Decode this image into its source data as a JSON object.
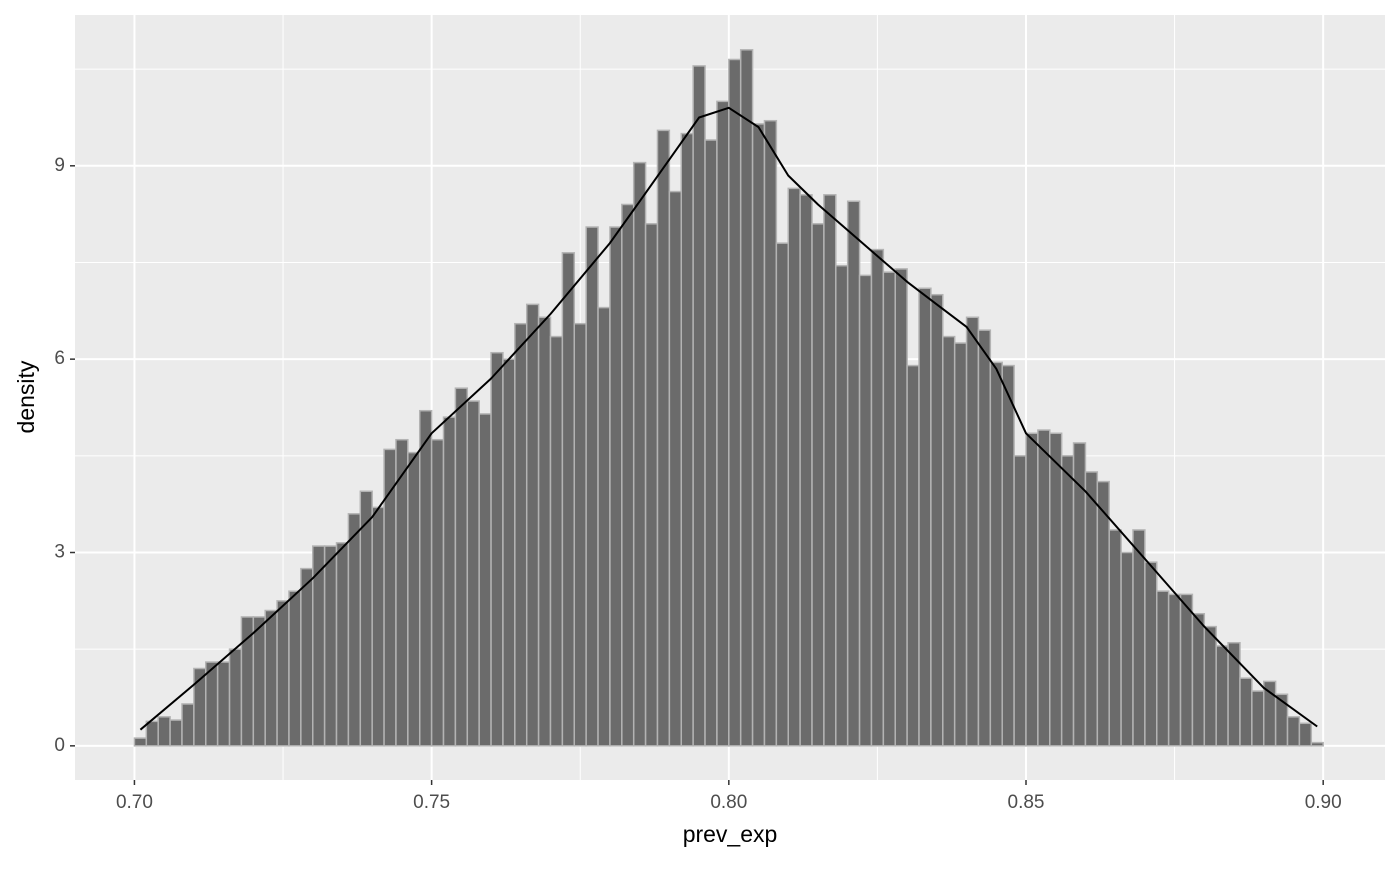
{
  "chart_data": {
    "type": "histogram",
    "x_label": "prev_exp",
    "y_label": "density",
    "bins": [
      0.7,
      0.702,
      0.704,
      0.706,
      0.708,
      0.71,
      0.712,
      0.714,
      0.716,
      0.718,
      0.72,
      0.722,
      0.724,
      0.726,
      0.728,
      0.73,
      0.732,
      0.734,
      0.736,
      0.738,
      0.74,
      0.742,
      0.744,
      0.746,
      0.748,
      0.75,
      0.752,
      0.754,
      0.756,
      0.758,
      0.76,
      0.762,
      0.764,
      0.766,
      0.768,
      0.77,
      0.772,
      0.774,
      0.776,
      0.778,
      0.78,
      0.782,
      0.784,
      0.786,
      0.788,
      0.79,
      0.792,
      0.794,
      0.796,
      0.798,
      0.8,
      0.802,
      0.804,
      0.806,
      0.808,
      0.81,
      0.812,
      0.814,
      0.816,
      0.818,
      0.82,
      0.822,
      0.824,
      0.826,
      0.828,
      0.83,
      0.832,
      0.834,
      0.836,
      0.838,
      0.84,
      0.842,
      0.844,
      0.846,
      0.848,
      0.85,
      0.852,
      0.854,
      0.856,
      0.858,
      0.86,
      0.862,
      0.864,
      0.866,
      0.868,
      0.87,
      0.872,
      0.874,
      0.876,
      0.878,
      0.88,
      0.882,
      0.884,
      0.886,
      0.888,
      0.89,
      0.892,
      0.894,
      0.896,
      0.898,
      0.9
    ],
    "values": [
      0.12,
      0.38,
      0.45,
      0.4,
      0.65,
      1.2,
      1.3,
      1.3,
      1.5,
      2.0,
      2.0,
      2.1,
      2.25,
      2.4,
      2.75,
      3.1,
      3.1,
      3.15,
      3.6,
      3.95,
      3.7,
      4.6,
      4.75,
      4.55,
      5.2,
      4.75,
      5.1,
      5.55,
      5.35,
      5.15,
      6.1,
      6.0,
      6.55,
      6.85,
      6.65,
      6.35,
      7.65,
      6.55,
      8.05,
      6.8,
      8.05,
      8.4,
      9.05,
      8.1,
      9.55,
      8.6,
      9.5,
      10.55,
      9.4,
      10.0,
      10.65,
      10.8,
      9.65,
      9.7,
      7.8,
      8.65,
      8.55,
      8.1,
      8.55,
      7.45,
      8.45,
      7.3,
      7.7,
      7.35,
      7.4,
      5.9,
      7.1,
      7.0,
      6.35,
      6.25,
      6.65,
      6.45,
      5.95,
      5.9,
      4.5,
      4.85,
      4.9,
      4.85,
      4.5,
      4.7,
      4.25,
      4.1,
      3.35,
      3.0,
      3.35,
      2.85,
      2.4,
      2.35,
      2.35,
      2.05,
      1.85,
      1.55,
      1.6,
      1.05,
      0.85,
      1.0,
      0.8,
      0.45,
      0.35,
      0.05
    ],
    "bar_color": "#6b6b6b",
    "bar_edge_color": "#b3b3b3",
    "density": {
      "color": "#000000",
      "x": [
        0.701,
        0.71,
        0.72,
        0.73,
        0.74,
        0.745,
        0.75,
        0.76,
        0.77,
        0.78,
        0.785,
        0.79,
        0.795,
        0.8,
        0.805,
        0.81,
        0.815,
        0.82,
        0.83,
        0.835,
        0.84,
        0.845,
        0.85,
        0.86,
        0.87,
        0.88,
        0.89,
        0.899
      ],
      "y": [
        0.25,
        0.95,
        1.75,
        2.6,
        3.55,
        4.2,
        4.85,
        5.7,
        6.7,
        7.8,
        8.45,
        9.1,
        9.75,
        9.9,
        9.6,
        8.85,
        8.4,
        8.0,
        7.2,
        6.85,
        6.5,
        5.85,
        4.85,
        3.95,
        2.9,
        1.85,
        0.9,
        0.3
      ]
    },
    "xlim": [
      0.69,
      0.9104
    ],
    "ylim": [
      -0.53,
      11.34
    ],
    "xticks": [
      {
        "value": 0.7,
        "label": "0.70"
      },
      {
        "value": 0.75,
        "label": "0.75"
      },
      {
        "value": 0.8,
        "label": "0.80"
      },
      {
        "value": 0.85,
        "label": "0.85"
      },
      {
        "value": 0.9,
        "label": "0.90"
      }
    ],
    "yticks": [
      0,
      3,
      6,
      9
    ],
    "minor_xticks": [
      0.725,
      0.775,
      0.825,
      0.875
    ],
    "minor_yticks": [
      1.5,
      4.5,
      7.5,
      10.5
    ],
    "grid": true
  }
}
